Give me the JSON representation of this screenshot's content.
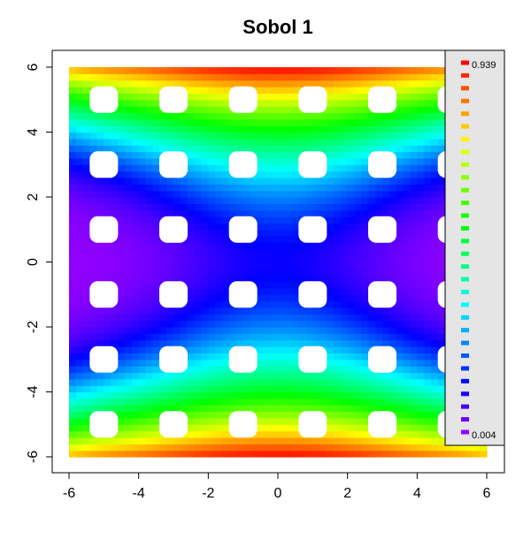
{
  "chart_data": {
    "type": "heatmap",
    "title": "Sobol 1",
    "xlabel": "",
    "ylabel": "",
    "xlim": [
      -6,
      6
    ],
    "ylim": [
      -6,
      6
    ],
    "x_ticks": [
      "-6",
      "-4",
      "-2",
      "0",
      "2",
      "4",
      "6"
    ],
    "y_ticks": [
      "-6",
      "-4",
      "-2",
      "0",
      "2",
      "4",
      "6"
    ],
    "value_range": [
      0.004,
      0.939
    ],
    "colormap": "rainbow (violet → blue → cyan → green → yellow → orange → red)",
    "legend": {
      "placement": "right",
      "max_label": "0.939",
      "min_label": "0.004",
      "steps": 30
    },
    "holes_x": [
      -5,
      -3,
      -1,
      1,
      3,
      5
    ],
    "holes_y": [
      -5,
      -3,
      -1,
      1,
      3,
      5
    ],
    "notes": "Field peaks (~0.94) at x≈0, y≈±6 and is lowest (~0.004) at x≈±6, y≈0; white gaps are unsampled regions."
  }
}
